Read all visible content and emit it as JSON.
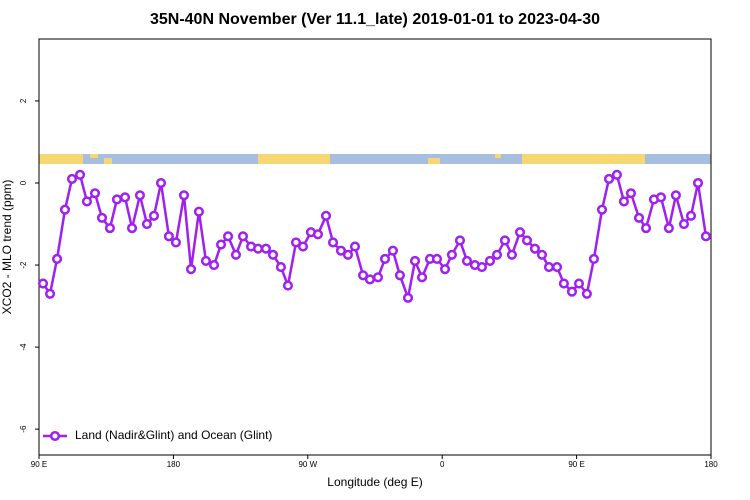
{
  "chart_data": {
    "type": "line",
    "title": "35N-40N November (Ver 11.1_late)   2019-01-01 to 2023-04-30",
    "xlabel": "Longitude (deg E)",
    "ylabel": "XCO2 - MLO trend (ppm)",
    "xlim": [
      90,
      540
    ],
    "ylim": [
      -6.63,
      3.51
    ],
    "xticks": [
      {
        "value": 90,
        "label": "90 E"
      },
      180,
      {
        "value": 270,
        "label": "90 W"
      },
      {
        "value": 360,
        "label": "0"
      },
      {
        "value": 450,
        "label": "90 E"
      },
      {
        "value": 540,
        "label": "180"
      }
    ],
    "yticks": [
      -6,
      -4,
      -2,
      0,
      2
    ],
    "legend": "bottom-left",
    "x": [
      92.7,
      97.4,
      102.1,
      107.4,
      112.1,
      117.5,
      122.1,
      127.5,
      132.2,
      137.5,
      142.2,
      147.6,
      152.3,
      157.6,
      162.3,
      167,
      171.7,
      177,
      181.7,
      187.1,
      191.8,
      197.1,
      201.8,
      207.2,
      211.9,
      216.6,
      221.9,
      226.6,
      232,
      236.7,
      242,
      246.7,
      252,
      256.7,
      262.1,
      266.8,
      272.1,
      276.8,
      282.2,
      286.9,
      292.2,
      296.9,
      301.6,
      307,
      311.6,
      317,
      321.7,
      327,
      331.7,
      337.1,
      341.8,
      346.5,
      351.8,
      356.5,
      361.9,
      366.5,
      371.9,
      376.6,
      381.9,
      386.6,
      392,
      396.7,
      402,
      406.7,
      412.1,
      416.8,
      422.1,
      426.8,
      431.5,
      436.9,
      441.5,
      446.9,
      451.6,
      456.9,
      461.6,
      467,
      471.7,
      477,
      481.7,
      486.4,
      491.8,
      496.5,
      501.8,
      506.5,
      511.8,
      516.5,
      521.9,
      526.6,
      531.3,
      536.6
    ],
    "series": [
      {
        "name": "Land (Nadir&Glint) and Ocean (Glint)",
        "color": "#a020f0",
        "values": [
          -2.45,
          -2.7,
          -1.85,
          -0.65,
          0.1,
          0.2,
          -0.45,
          -0.25,
          -0.85,
          -1.1,
          -0.4,
          -0.35,
          -1.1,
          -0.3,
          -1.0,
          -0.8,
          0.0,
          -1.3,
          -1.45,
          -0.3,
          -2.1,
          -0.7,
          -1.9,
          -2.0,
          -1.5,
          -1.3,
          -1.75,
          -1.3,
          -1.55,
          -1.6,
          -1.6,
          -1.75,
          -2.05,
          -2.5,
          -1.45,
          -1.55,
          -1.2,
          -1.25,
          -0.8,
          -1.45,
          -1.65,
          -1.75,
          -1.55,
          -2.25,
          -2.35,
          -2.3,
          -1.85,
          -1.65,
          -2.25,
          -2.8,
          -1.9,
          -2.3,
          -1.85,
          -1.85,
          -2.1,
          -1.75,
          -1.4,
          -1.9,
          -2.0,
          -2.05,
          -1.9,
          -1.75,
          -1.4,
          -1.75,
          -1.2,
          -1.4,
          -1.6,
          -1.75,
          -2.05,
          -2.05,
          -2.45,
          -2.65,
          -2.45,
          -2.7,
          -1.85,
          -0.65,
          0.1,
          0.2,
          -0.45,
          -0.25,
          -0.85,
          -1.1,
          -0.4,
          -0.35,
          -1.1,
          -0.3,
          -1.0,
          -0.8,
          0.0,
          -1.3
        ]
      }
    ]
  }
}
